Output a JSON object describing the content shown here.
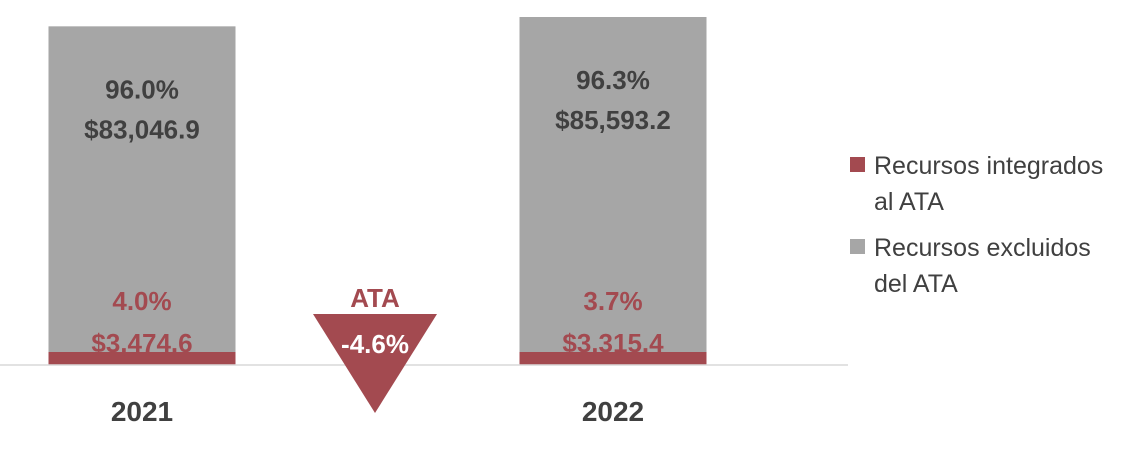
{
  "chart_data": {
    "type": "bar",
    "stacked": true,
    "categories": [
      "2021",
      "2022"
    ],
    "series": [
      {
        "name": "Recursos integrados al ATA",
        "color": "#a34a50",
        "values": [
          3474.6,
          3315.4
        ],
        "value_labels": [
          "$3,474.6",
          "$3,315.4"
        ],
        "percent_labels": [
          "4.0%",
          "3.7%"
        ]
      },
      {
        "name": "Recursos excluidos del ATA",
        "color": "#a6a6a6",
        "values": [
          83046.9,
          85593.2
        ],
        "value_labels": [
          "$83,046.9",
          "$85,593.2"
        ],
        "percent_labels": [
          "96.0%",
          "96.3%"
        ]
      }
    ],
    "annotation": {
      "title": "ATA",
      "value": "-4.6%",
      "color": "#a34a50"
    },
    "legend_position": "right",
    "grid": false
  }
}
